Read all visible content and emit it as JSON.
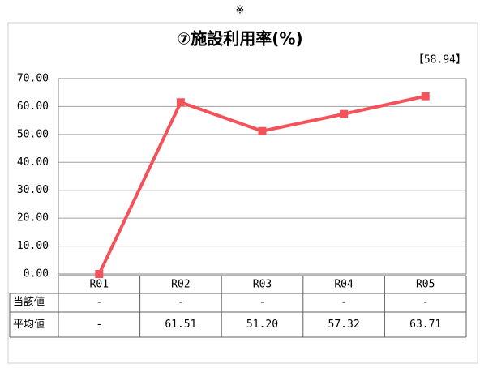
{
  "chart_data": {
    "type": "line",
    "note": "※",
    "title": "⑦施設利用率(%)",
    "annotation": "【58.94】",
    "categories": [
      "R01",
      "R02",
      "R03",
      "R04",
      "R05"
    ],
    "series": [
      {
        "name": "当該値",
        "color": "#4472c4",
        "values": [
          null,
          null,
          null,
          null,
          null
        ],
        "value_labels": [
          "-",
          "-",
          "-",
          "-",
          "-"
        ]
      },
      {
        "name": "平均値",
        "color": "#f4525a",
        "values": [
          0,
          61.51,
          51.2,
          57.32,
          63.71
        ],
        "value_labels": [
          "-",
          "61.51",
          "51.20",
          "57.32",
          "63.71"
        ]
      }
    ],
    "ylim": [
      0,
      70
    ],
    "yticks": [
      {
        "value": 0,
        "label": "0.00"
      },
      {
        "value": 10,
        "label": "10.00"
      },
      {
        "value": 20,
        "label": "20.00"
      },
      {
        "value": 30,
        "label": "30.00"
      },
      {
        "value": 40,
        "label": "40.00"
      },
      {
        "value": 50,
        "label": "50.00"
      },
      {
        "value": 60,
        "label": "60.00"
      },
      {
        "value": 70,
        "label": "70.00"
      }
    ],
    "grid": true
  }
}
